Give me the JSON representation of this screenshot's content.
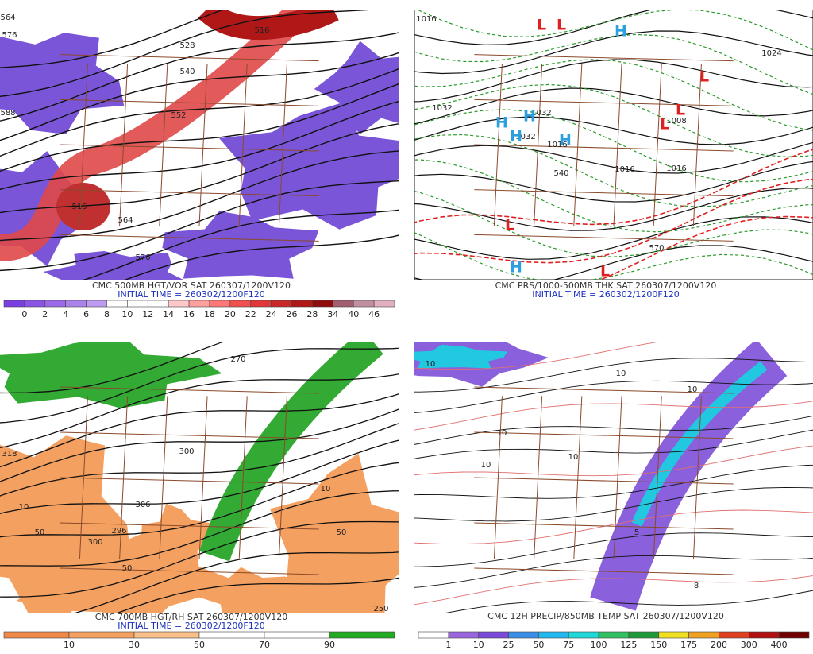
{
  "panels": [
    {
      "title": "CMC 500MB HGT/VOR SAT 260307/1200V120",
      "subtitle": "INITIAL TIME = 260302/1200F120",
      "contour_labels": [
        "564",
        "576",
        "528",
        "516",
        "540",
        "552",
        "588",
        "516",
        "564",
        "576"
      ],
      "colorbar": {
        "labels": [
          "0",
          "2",
          "4",
          "6",
          "8",
          "10",
          "12",
          "14",
          "16",
          "18",
          "20",
          "22",
          "24",
          "26",
          "28",
          "34",
          "40",
          "46"
        ],
        "colors": [
          "#7a3fe0",
          "#8a55e4",
          "#9a6ae8",
          "#ab82ec",
          "#bc9bf0",
          "#ffffff",
          "#ffffff",
          "#ffffff",
          "#ffc8c8",
          "#ffa0a0",
          "#ff7878",
          "#f05050",
          "#e03838",
          "#c82828",
          "#b01818",
          "#900c0c",
          "#a06070",
          "#c090a0",
          "#e0b0c0"
        ]
      }
    },
    {
      "title": "CMC PRS/1000-500MB THK SAT 260307/1200V120",
      "subtitle": "INITIAL TIME = 260302/1200F120",
      "contour_labels": [
        "1016",
        "1032",
        "1032",
        "1032",
        "1016",
        "1024",
        "1016",
        "1008",
        "1016",
        "540",
        "570"
      ],
      "centers": [
        {
          "letter": "L",
          "kind": "low"
        },
        {
          "letter": "L",
          "kind": "low"
        },
        {
          "letter": "H",
          "kind": "high"
        },
        {
          "letter": "H",
          "kind": "high"
        },
        {
          "letter": "H",
          "kind": "high"
        },
        {
          "letter": "H",
          "kind": "high"
        },
        {
          "letter": "H",
          "kind": "high"
        },
        {
          "letter": "L",
          "kind": "low"
        },
        {
          "letter": "L",
          "kind": "low"
        },
        {
          "letter": "L",
          "kind": "low"
        },
        {
          "letter": "L",
          "kind": "low"
        },
        {
          "letter": "H",
          "kind": "high"
        },
        {
          "letter": "L",
          "kind": "low"
        }
      ]
    },
    {
      "title": "CMC 700MB HGT/RH SAT 260307/1200V120",
      "subtitle": "INITIAL TIME = 260302/1200F120",
      "contour_labels": [
        "270",
        "318",
        "300",
        "306",
        "296",
        "300",
        "50",
        "10",
        "50",
        "10",
        "50",
        "250"
      ],
      "colorbar": {
        "labels": [
          "10",
          "30",
          "50",
          "70",
          "90"
        ],
        "colors": [
          "#f08848",
          "#f4a060",
          "#f8c088",
          "#ffffff",
          "#ffffff",
          "#22aa22"
        ]
      }
    },
    {
      "title": "CMC 12H PRECIP/850MB TEMP SAT 260307/1200V120",
      "contour_labels": [
        "10",
        "10",
        "10",
        "10",
        "10",
        "10",
        "5",
        "8"
      ],
      "colorbar": {
        "labels": [
          "1",
          "10",
          "25",
          "50",
          "75",
          "100",
          "125",
          "150",
          "175",
          "200",
          "300",
          "400"
        ],
        "colors": [
          "#ffffff",
          "#9966dd",
          "#7a4ad8",
          "#3a8ee8",
          "#22b8f0",
          "#20d8d8",
          "#30c060",
          "#1f9a3a",
          "#f0e020",
          "#f0a020",
          "#e04020",
          "#b01010",
          "#700000"
        ]
      }
    }
  ]
}
